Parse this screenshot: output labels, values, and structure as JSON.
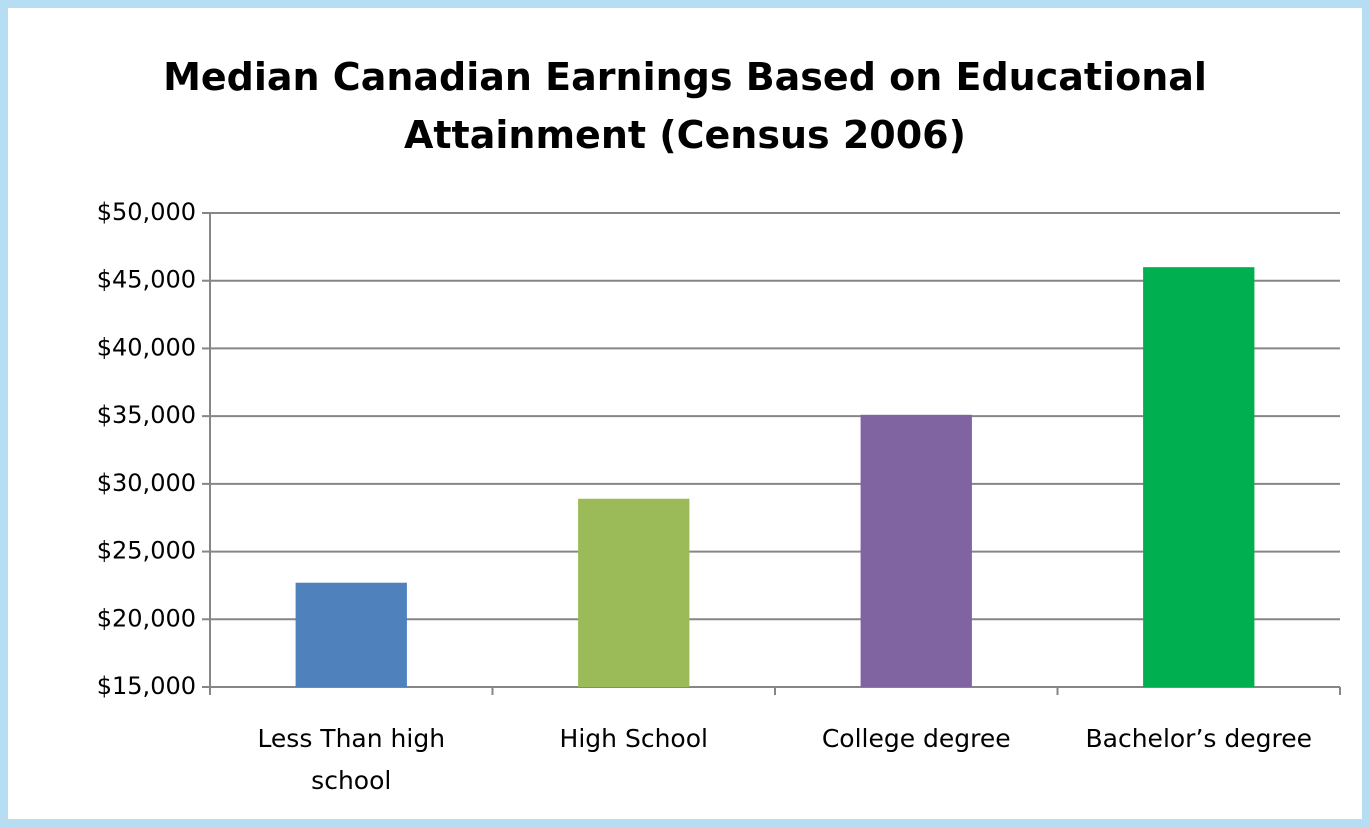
{
  "chart_data": {
    "type": "bar",
    "title": "Median Canadian Earnings Based on Educational Attainment (Census 2006)",
    "categories": [
      "Less Than high school",
      "High School",
      "College degree",
      "Bachelor’s degree"
    ],
    "values": [
      22700,
      28900,
      35100,
      46000
    ],
    "colors": [
      "#4f81bd",
      "#9bbb59",
      "#8064a2",
      "#00b050"
    ],
    "ylim": [
      15000,
      50000
    ],
    "yticks": [
      {
        "value": 15000,
        "label": "$15,000"
      },
      {
        "value": 20000,
        "label": "$20,000"
      },
      {
        "value": 25000,
        "label": "$25,000"
      },
      {
        "value": 30000,
        "label": "$30,000"
      },
      {
        "value": 35000,
        "label": "$35,000"
      },
      {
        "value": 40000,
        "label": "$40,000"
      },
      {
        "value": 45000,
        "label": "$45,000"
      },
      {
        "value": 50000,
        "label": "$50,000"
      }
    ],
    "grid": true
  }
}
